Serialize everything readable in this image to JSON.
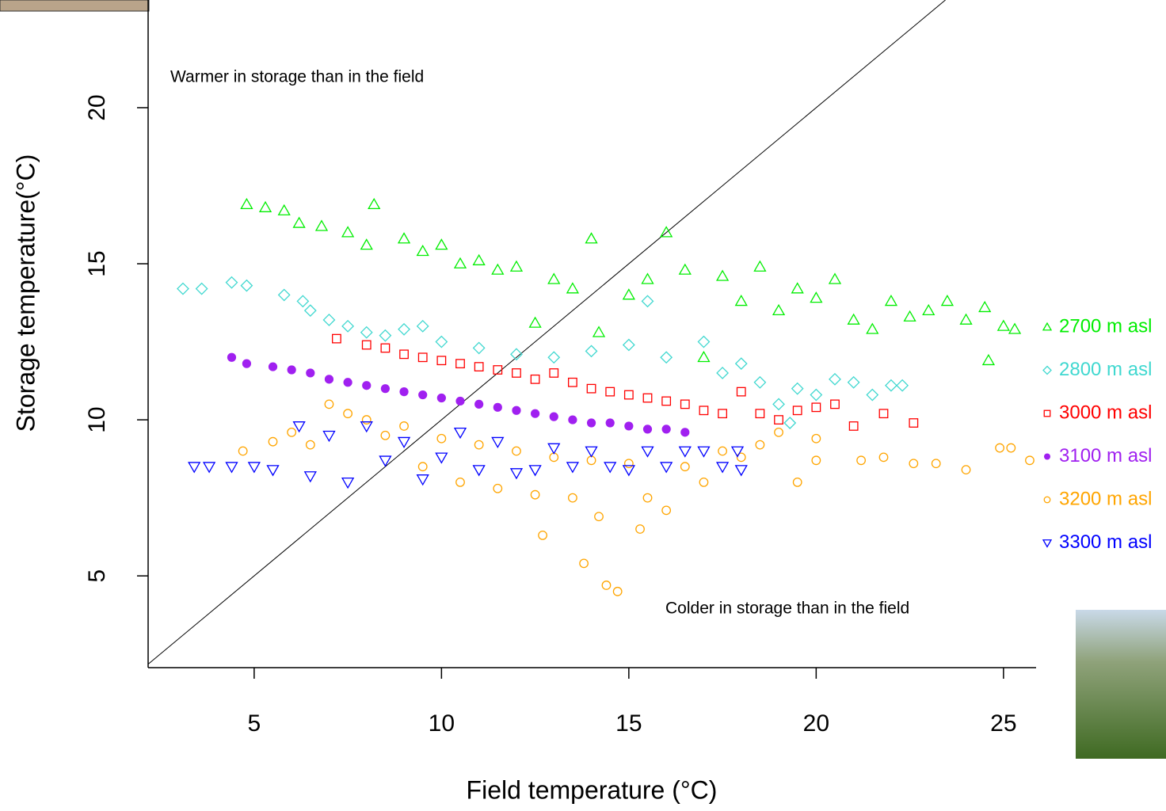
{
  "chart_data": {
    "type": "scatter",
    "x_label": "Field temperature (°C)",
    "y_label": "Storage temperature(°C)",
    "annotations": [
      "Warmer in storage than in the field",
      "Colder in storage than in the field"
    ],
    "xlim": [
      2.17,
      25.87
    ],
    "ylim": [
      2.06,
      23.45
    ],
    "xticks": [
      5,
      10,
      15,
      20,
      25
    ],
    "yticks": [
      5,
      10,
      15,
      20
    ],
    "legend": "right",
    "series": [
      {
        "name": "2700 m asl",
        "color": "#00ee00",
        "marker": "triangle",
        "x": [
          4.8,
          5.3,
          5.8,
          6.2,
          6.8,
          7.5,
          8.2,
          8.0,
          9.0,
          9.5,
          10.0,
          10.5,
          11.0,
          11.5,
          12.0,
          12.5,
          13.0,
          13.5,
          14.0,
          14.2,
          15.0,
          15.5,
          16.0,
          16.5,
          17.0,
          17.5,
          18.0,
          18.5,
          19.0,
          19.5,
          20.0,
          20.5,
          21.0,
          21.5,
          22.0,
          22.5,
          23.0,
          23.5,
          24.0,
          24.5,
          24.6,
          25.0,
          25.3
        ],
        "y": [
          16.9,
          16.8,
          16.7,
          16.3,
          16.2,
          16.0,
          16.9,
          15.6,
          15.8,
          15.4,
          15.6,
          15.0,
          15.1,
          14.8,
          14.9,
          13.1,
          14.5,
          14.2,
          15.8,
          12.8,
          14.0,
          14.5,
          16.0,
          14.8,
          12.0,
          14.6,
          13.8,
          14.9,
          13.5,
          14.2,
          13.9,
          14.5,
          13.2,
          12.9,
          13.8,
          13.3,
          13.5,
          13.8,
          13.2,
          13.6,
          11.9,
          13.0,
          12.9
        ]
      },
      {
        "name": "2800 m asl",
        "color": "#40d8d0",
        "marker": "diamond",
        "x": [
          3.1,
          3.6,
          4.4,
          4.8,
          5.8,
          6.3,
          6.5,
          7.0,
          7.5,
          8.0,
          8.5,
          9.0,
          9.5,
          10.0,
          11.0,
          12.0,
          13.0,
          14.0,
          15.0,
          15.5,
          16.0,
          17.0,
          17.5,
          18.0,
          18.5,
          19.0,
          19.5,
          20.0,
          20.5,
          21.0,
          21.5,
          22.0,
          22.3,
          19.3
        ],
        "y": [
          14.2,
          14.2,
          14.4,
          14.3,
          14.0,
          13.8,
          13.5,
          13.2,
          13.0,
          12.8,
          12.7,
          12.9,
          13.0,
          12.5,
          12.3,
          12.1,
          12.0,
          12.2,
          12.4,
          13.8,
          12.0,
          12.5,
          11.5,
          11.8,
          11.2,
          10.5,
          11.0,
          10.8,
          11.3,
          11.2,
          10.8,
          11.1,
          11.1,
          9.9
        ]
      },
      {
        "name": "3000 m asl",
        "color": "#ff0000",
        "marker": "square",
        "x": [
          7.2,
          8.0,
          8.5,
          9.0,
          9.5,
          10.0,
          10.5,
          11.0,
          11.5,
          12.0,
          12.5,
          13.0,
          13.5,
          14.0,
          14.5,
          15.0,
          15.5,
          16.0,
          16.5,
          17.0,
          17.5,
          18.0,
          18.5,
          19.0,
          19.5,
          20.0,
          20.5,
          21.0,
          21.8,
          22.6
        ],
        "y": [
          12.6,
          12.4,
          12.3,
          12.1,
          12.0,
          11.9,
          11.8,
          11.7,
          11.6,
          11.5,
          11.3,
          11.5,
          11.2,
          11.0,
          10.9,
          10.8,
          10.7,
          10.6,
          10.5,
          10.3,
          10.2,
          10.9,
          10.2,
          10.0,
          10.3,
          10.4,
          10.5,
          9.8,
          10.2,
          9.9
        ]
      },
      {
        "name": "3100 m asl",
        "color": "#a020f0",
        "marker": "dot",
        "x": [
          4.4,
          4.8,
          5.5,
          6.0,
          6.5,
          7.0,
          7.5,
          8.0,
          8.5,
          9.0,
          9.5,
          10.0,
          10.5,
          11.0,
          11.5,
          12.0,
          12.5,
          13.0,
          13.5,
          14.0,
          14.5,
          15.0,
          15.5,
          16.0,
          16.5
        ],
        "y": [
          12.0,
          11.8,
          11.7,
          11.6,
          11.5,
          11.3,
          11.2,
          11.1,
          11.0,
          10.9,
          10.8,
          10.7,
          10.6,
          10.5,
          10.4,
          10.3,
          10.2,
          10.1,
          10.0,
          9.9,
          9.9,
          9.8,
          9.7,
          9.7,
          9.6
        ]
      },
      {
        "name": "3200 m asl",
        "color": "#ffa500",
        "marker": "circle",
        "x": [
          4.7,
          5.5,
          6.0,
          6.5,
          7.0,
          7.5,
          8.0,
          8.5,
          9.0,
          9.5,
          10.0,
          10.5,
          11.0,
          11.5,
          12.0,
          12.5,
          12.7,
          13.0,
          13.5,
          13.8,
          14.0,
          14.2,
          14.4,
          14.7,
          15.0,
          15.3,
          15.5,
          16.0,
          16.5,
          17.0,
          17.5,
          18.0,
          18.5,
          19.0,
          19.5,
          20.0,
          20.0,
          21.2,
          21.8,
          22.6,
          23.2,
          24.0,
          24.9,
          25.2,
          25.7
        ],
        "y": [
          9.0,
          9.3,
          9.6,
          9.2,
          10.5,
          10.2,
          10.0,
          9.5,
          9.8,
          8.5,
          9.4,
          8.0,
          9.2,
          7.8,
          9.0,
          7.6,
          6.3,
          8.8,
          7.5,
          5.4,
          8.7,
          6.9,
          4.7,
          4.5,
          8.6,
          6.5,
          7.5,
          7.1,
          8.5,
          8.0,
          9.0,
          8.8,
          9.2,
          9.6,
          8.0,
          9.4,
          8.7,
          8.7,
          8.8,
          8.6,
          8.6,
          8.4,
          9.1,
          9.1,
          8.7
        ]
      },
      {
        "name": "3300 m asl",
        "color": "#0000ff",
        "marker": "down-triangle",
        "x": [
          3.4,
          3.8,
          4.4,
          5.0,
          5.5,
          6.2,
          6.5,
          7.0,
          7.5,
          8.0,
          8.5,
          9.0,
          9.5,
          10.0,
          10.5,
          11.0,
          11.5,
          12.0,
          12.5,
          13.0,
          13.5,
          14.0,
          14.5,
          15.0,
          15.5,
          16.0,
          16.5,
          17.0,
          17.5,
          17.9,
          18.0
        ],
        "y": [
          8.5,
          8.5,
          8.5,
          8.5,
          8.4,
          9.8,
          8.2,
          9.5,
          8.0,
          9.8,
          8.7,
          9.3,
          8.1,
          8.8,
          9.6,
          8.4,
          9.3,
          8.3,
          8.4,
          9.1,
          8.5,
          9.0,
          8.5,
          8.4,
          9.0,
          8.5,
          9.0,
          9.0,
          8.5,
          9.0,
          8.4
        ]
      }
    ]
  }
}
